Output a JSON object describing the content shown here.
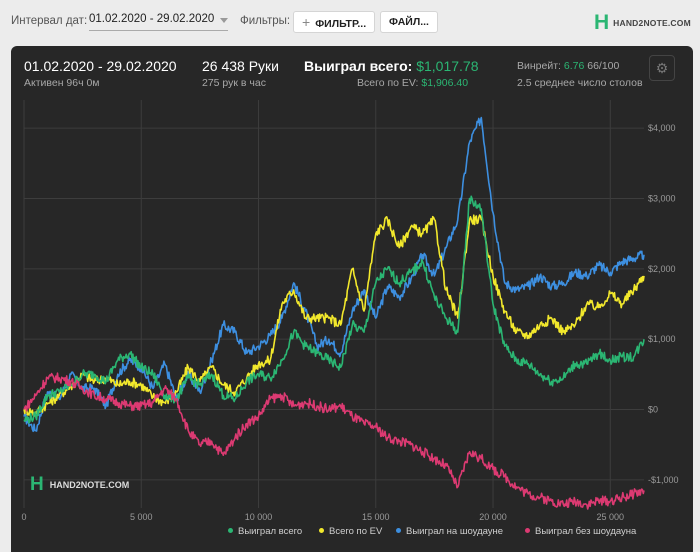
{
  "toolbar": {
    "date_label": "Интервал дат:",
    "date_range": "01.02.2020 - 29.02.2020",
    "filters_label": "Фильтры:",
    "filter_button": "ФИЛЬТР...",
    "file_button": "ФАЙЛ...",
    "logo_text": "HAND2NOTE.COM"
  },
  "stats": {
    "period": "01.02.2020 - 29.02.2020",
    "active": "Активен 96ч 0м",
    "hands": "26 438 Руки",
    "hands_per_hour": "275 рук в час",
    "won_label": "Выиграл всего:",
    "won_value": "$1,017.78",
    "ev_label": "Всего по EV:",
    "ev_value": "$1,906.40",
    "winrate_label": "Винрейт:",
    "winrate_value": "6.76",
    "winrate_sample": "66/100",
    "tables": "2.5 среднее число столов"
  },
  "colors": {
    "won": "#2bb673",
    "ev": "#f2e82c",
    "showdown": "#3d8fe0",
    "non_showdown": "#dc3a72",
    "panel_bg": "#272727",
    "grid": "#3d3d3d",
    "gear_icon": "gear-icon"
  },
  "chart_data": {
    "type": "line",
    "xlim": [
      0,
      26438
    ],
    "ylim": [
      -1400,
      4400
    ],
    "x_ticks": [
      0,
      5000,
      10000,
      15000,
      20000,
      25000
    ],
    "x_tick_labels": [
      "0",
      "5 000",
      "10 000",
      "15 000",
      "20 000",
      "25 000"
    ],
    "y_ticks": [
      -1000,
      0,
      1000,
      2000,
      3000,
      4000
    ],
    "y_tick_labels": [
      "-$1,000",
      "$0",
      "$1,000",
      "$2,000",
      "$3,000",
      "$4,000"
    ],
    "grid": true,
    "legend_position": "bottom-right",
    "series": [
      {
        "name": "Выиграл на шоудауне",
        "color": "#3d8fe0",
        "points": [
          [
            0,
            -100
          ],
          [
            500,
            -300
          ],
          [
            1000,
            250
          ],
          [
            1500,
            150
          ],
          [
            2000,
            500
          ],
          [
            2500,
            300
          ],
          [
            3000,
            300
          ],
          [
            3500,
            50
          ],
          [
            4000,
            500
          ],
          [
            4500,
            700
          ],
          [
            5000,
            600
          ],
          [
            5500,
            300
          ],
          [
            6000,
            650
          ],
          [
            6500,
            150
          ],
          [
            7000,
            500
          ],
          [
            7500,
            250
          ],
          [
            8000,
            700
          ],
          [
            8500,
            1200
          ],
          [
            9000,
            1100
          ],
          [
            9500,
            800
          ],
          [
            10000,
            900
          ],
          [
            10500,
            1050
          ],
          [
            11000,
            1300
          ],
          [
            11500,
            1800
          ],
          [
            12000,
            1400
          ],
          [
            12500,
            900
          ],
          [
            13000,
            1000
          ],
          [
            13500,
            800
          ],
          [
            14000,
            1400
          ],
          [
            14500,
            1700
          ],
          [
            15000,
            1300
          ],
          [
            15500,
            1750
          ],
          [
            16000,
            1600
          ],
          [
            16500,
            1850
          ],
          [
            17000,
            2200
          ],
          [
            17500,
            1900
          ],
          [
            18000,
            2300
          ],
          [
            18500,
            2700
          ],
          [
            19000,
            3800
          ],
          [
            19500,
            4150
          ],
          [
            20000,
            2800
          ],
          [
            20500,
            1800
          ],
          [
            21000,
            1700
          ],
          [
            21500,
            1750
          ],
          [
            22000,
            1900
          ],
          [
            22500,
            1750
          ],
          [
            23000,
            1800
          ],
          [
            23500,
            1950
          ],
          [
            24000,
            1900
          ],
          [
            24500,
            2050
          ],
          [
            25000,
            1950
          ],
          [
            25500,
            2100
          ],
          [
            26000,
            2150
          ],
          [
            26438,
            2200
          ]
        ]
      },
      {
        "name": "Всего по EV",
        "color": "#f2e82c",
        "points": [
          [
            0,
            0
          ],
          [
            500,
            -50
          ],
          [
            1000,
            80
          ],
          [
            1500,
            200
          ],
          [
            2000,
            330
          ],
          [
            2500,
            500
          ],
          [
            3000,
            400
          ],
          [
            3500,
            450
          ],
          [
            4000,
            350
          ],
          [
            4500,
            400
          ],
          [
            5000,
            350
          ],
          [
            5500,
            180
          ],
          [
            6000,
            100
          ],
          [
            6500,
            250
          ],
          [
            7000,
            600
          ],
          [
            7500,
            400
          ],
          [
            8000,
            600
          ],
          [
            8500,
            350
          ],
          [
            9000,
            250
          ],
          [
            9500,
            450
          ],
          [
            10000,
            650
          ],
          [
            10500,
            700
          ],
          [
            11000,
            1500
          ],
          [
            11500,
            1700
          ],
          [
            12000,
            1300
          ],
          [
            12500,
            1300
          ],
          [
            13000,
            1300
          ],
          [
            13500,
            1200
          ],
          [
            14000,
            2000
          ],
          [
            14500,
            1400
          ],
          [
            15000,
            2500
          ],
          [
            15500,
            2700
          ],
          [
            16000,
            2300
          ],
          [
            16500,
            2600
          ],
          [
            17000,
            2500
          ],
          [
            17500,
            2700
          ],
          [
            18000,
            1700
          ],
          [
            18500,
            1300
          ],
          [
            19000,
            2700
          ],
          [
            19500,
            2700
          ],
          [
            20000,
            1900
          ],
          [
            20500,
            1400
          ],
          [
            21000,
            1100
          ],
          [
            21500,
            1050
          ],
          [
            22000,
            1200
          ],
          [
            22500,
            1300
          ],
          [
            23000,
            1100
          ],
          [
            23500,
            1200
          ],
          [
            24000,
            1500
          ],
          [
            24500,
            1450
          ],
          [
            25000,
            1650
          ],
          [
            25500,
            1500
          ],
          [
            26000,
            1700
          ],
          [
            26438,
            1900
          ]
        ]
      },
      {
        "name": "Выиграл всего",
        "color": "#2bb673",
        "points": [
          [
            0,
            -150
          ],
          [
            500,
            -100
          ],
          [
            1000,
            200
          ],
          [
            1500,
            250
          ],
          [
            2000,
            350
          ],
          [
            2500,
            500
          ],
          [
            3000,
            500
          ],
          [
            3500,
            400
          ],
          [
            4000,
            700
          ],
          [
            4500,
            800
          ],
          [
            5000,
            600
          ],
          [
            5500,
            500
          ],
          [
            6000,
            200
          ],
          [
            6500,
            150
          ],
          [
            7000,
            450
          ],
          [
            7500,
            350
          ],
          [
            8000,
            500
          ],
          [
            8500,
            200
          ],
          [
            9000,
            150
          ],
          [
            9500,
            400
          ],
          [
            10000,
            500
          ],
          [
            10500,
            450
          ],
          [
            11000,
            700
          ],
          [
            11500,
            1100
          ],
          [
            12000,
            900
          ],
          [
            12500,
            800
          ],
          [
            13000,
            700
          ],
          [
            13500,
            600
          ],
          [
            14000,
            1200
          ],
          [
            14500,
            1100
          ],
          [
            15000,
            1800
          ],
          [
            15500,
            2000
          ],
          [
            16000,
            1800
          ],
          [
            16500,
            1950
          ],
          [
            17000,
            2100
          ],
          [
            17500,
            1600
          ],
          [
            18000,
            1300
          ],
          [
            18500,
            1100
          ],
          [
            19000,
            3000
          ],
          [
            19500,
            2850
          ],
          [
            20000,
            1500
          ],
          [
            20500,
            900
          ],
          [
            21000,
            700
          ],
          [
            21500,
            650
          ],
          [
            22000,
            500
          ],
          [
            22500,
            400
          ],
          [
            23000,
            450
          ],
          [
            23500,
            650
          ],
          [
            24000,
            650
          ],
          [
            24500,
            800
          ],
          [
            25000,
            700
          ],
          [
            25500,
            750
          ],
          [
            26000,
            750
          ],
          [
            26438,
            1000
          ]
        ]
      },
      {
        "name": "Выиграл без шоудауна",
        "color": "#dc3a72",
        "points": [
          [
            0,
            0
          ],
          [
            500,
            200
          ],
          [
            1000,
            450
          ],
          [
            1500,
            450
          ],
          [
            2000,
            400
          ],
          [
            2500,
            300
          ],
          [
            3000,
            200
          ],
          [
            3500,
            150
          ],
          [
            4000,
            100
          ],
          [
            4500,
            50
          ],
          [
            5000,
            50
          ],
          [
            5500,
            100
          ],
          [
            6000,
            300
          ],
          [
            6500,
            150
          ],
          [
            7000,
            -300
          ],
          [
            7500,
            -500
          ],
          [
            8000,
            -450
          ],
          [
            8500,
            -650
          ],
          [
            9000,
            -400
          ],
          [
            9500,
            -200
          ],
          [
            10000,
            -100
          ],
          [
            10500,
            150
          ],
          [
            11000,
            200
          ],
          [
            11500,
            50
          ],
          [
            12000,
            100
          ],
          [
            12500,
            50
          ],
          [
            13000,
            0
          ],
          [
            13500,
            50
          ],
          [
            14000,
            -100
          ],
          [
            14500,
            -200
          ],
          [
            15000,
            -250
          ],
          [
            15500,
            -400
          ],
          [
            16000,
            -450
          ],
          [
            16500,
            -500
          ],
          [
            17000,
            -600
          ],
          [
            17500,
            -700
          ],
          [
            18000,
            -800
          ],
          [
            18500,
            -1100
          ],
          [
            19000,
            -600
          ],
          [
            19500,
            -700
          ],
          [
            20000,
            -850
          ],
          [
            20500,
            -950
          ],
          [
            21000,
            -1100
          ],
          [
            21500,
            -1200
          ],
          [
            22000,
            -1250
          ],
          [
            22500,
            -1300
          ],
          [
            23000,
            -1350
          ],
          [
            23500,
            -1300
          ],
          [
            24000,
            -1350
          ],
          [
            24500,
            -1300
          ],
          [
            25000,
            -1300
          ],
          [
            25500,
            -1250
          ],
          [
            26000,
            -1200
          ],
          [
            26438,
            -1150
          ]
        ]
      }
    ]
  }
}
